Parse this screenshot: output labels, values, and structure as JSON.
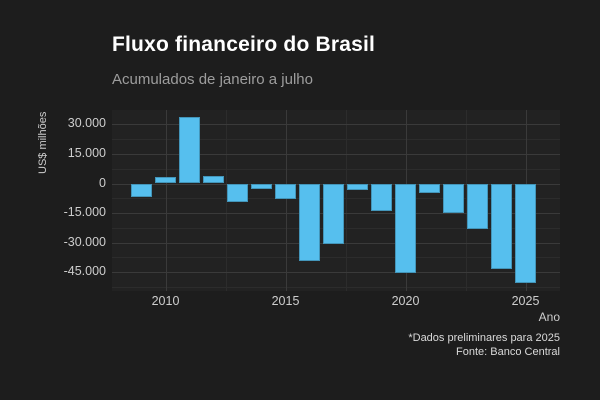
{
  "header": {
    "title": "Fluxo financeiro do Brasil",
    "subtitle": "Acumulados de janeiro a julho"
  },
  "caption": {
    "line1": "*Dados preliminares para 2025",
    "line2": "Fonte: Banco Central"
  },
  "colors": {
    "bar_fill": "#56bfee",
    "background": "#1d1d1d",
    "panel_background": "#222222",
    "grid_major": "#3a3a3a",
    "grid_minor": "#2c2c2c",
    "title_text": "#ffffff",
    "subtitle_text": "#9d9d9d",
    "axis_text": "#cdcdcd",
    "caption_text": "#dadada"
  },
  "chart_data": {
    "type": "bar",
    "title": "Fluxo financeiro do Brasil",
    "subtitle": "Acumulados de janeiro a julho",
    "caption": "*Dados preliminares para 2025 | Fonte: Banco Central",
    "xlabel": "Ano",
    "ylabel": "US$ milhões",
    "units": "US$ milhões",
    "x": [
      2009,
      2010,
      2011,
      2012,
      2013,
      2014,
      2015,
      2016,
      2017,
      2018,
      2019,
      2020,
      2021,
      2022,
      2023,
      2024,
      2025
    ],
    "values": [
      -7000,
      3500,
      33500,
      4000,
      -9500,
      -3000,
      -8000,
      -39500,
      -30500,
      -3500,
      -14000,
      -45500,
      -5000,
      -15000,
      -23000,
      -43500,
      -50500
    ],
    "y_ticks": [
      {
        "value": 30000,
        "label": "30.000"
      },
      {
        "value": 15000,
        "label": "15.000"
      },
      {
        "value": 0,
        "label": "0"
      },
      {
        "value": -15000,
        "label": "-15.000"
      },
      {
        "value": -30000,
        "label": "-30.000"
      },
      {
        "value": -45000,
        "label": "-45.000"
      }
    ],
    "y_minor": [
      22500,
      7500,
      -7500,
      -22500,
      -37500,
      -52500
    ],
    "x_ticks": [
      {
        "value": 2010,
        "label": "2010"
      },
      {
        "value": 2015,
        "label": "2015"
      },
      {
        "value": 2020,
        "label": "2020"
      },
      {
        "value": 2025,
        "label": "2025"
      }
    ],
    "x_minor": [
      2012.5,
      2017.5,
      2022.5
    ],
    "ylim": [
      -54500,
      37000
    ],
    "xlim": [
      2007.8,
      2026.6
    ],
    "grid": true,
    "legend": "none",
    "bar_color": "#56bfee"
  }
}
